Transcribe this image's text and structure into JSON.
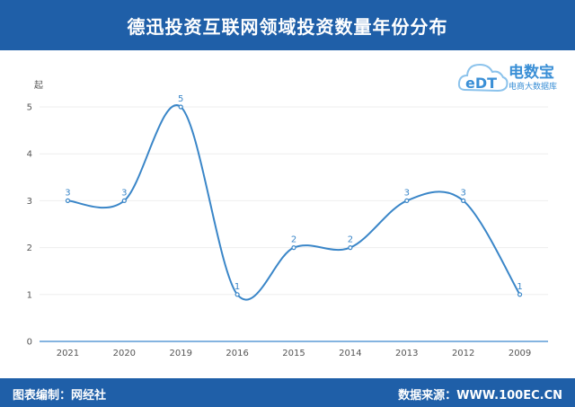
{
  "header": {
    "title": "德迅投资互联网领域投资数量年份分布"
  },
  "logo": {
    "brand": "电数宝",
    "tagline": "电商大数据库",
    "mark_text": "eDT"
  },
  "footer": {
    "left": "图表编制：网经社",
    "right": "数据来源：WWW.100EC.CN"
  },
  "colors": {
    "header_bg": "#1f5fa8",
    "line": "#3a86c8",
    "axis": "#5b9bd5"
  },
  "chart_data": {
    "type": "line",
    "smooth": true,
    "categories": [
      "2021",
      "2020",
      "2019",
      "2016",
      "2015",
      "2014",
      "2013",
      "2012",
      "2009"
    ],
    "values": [
      3,
      3,
      5,
      1,
      2,
      2,
      3,
      3,
      1
    ],
    "ylabel": "起",
    "ylim": [
      0,
      5
    ],
    "yticks": [
      0,
      1,
      2,
      3,
      4,
      5
    ],
    "grid": true,
    "data_labels": true
  }
}
